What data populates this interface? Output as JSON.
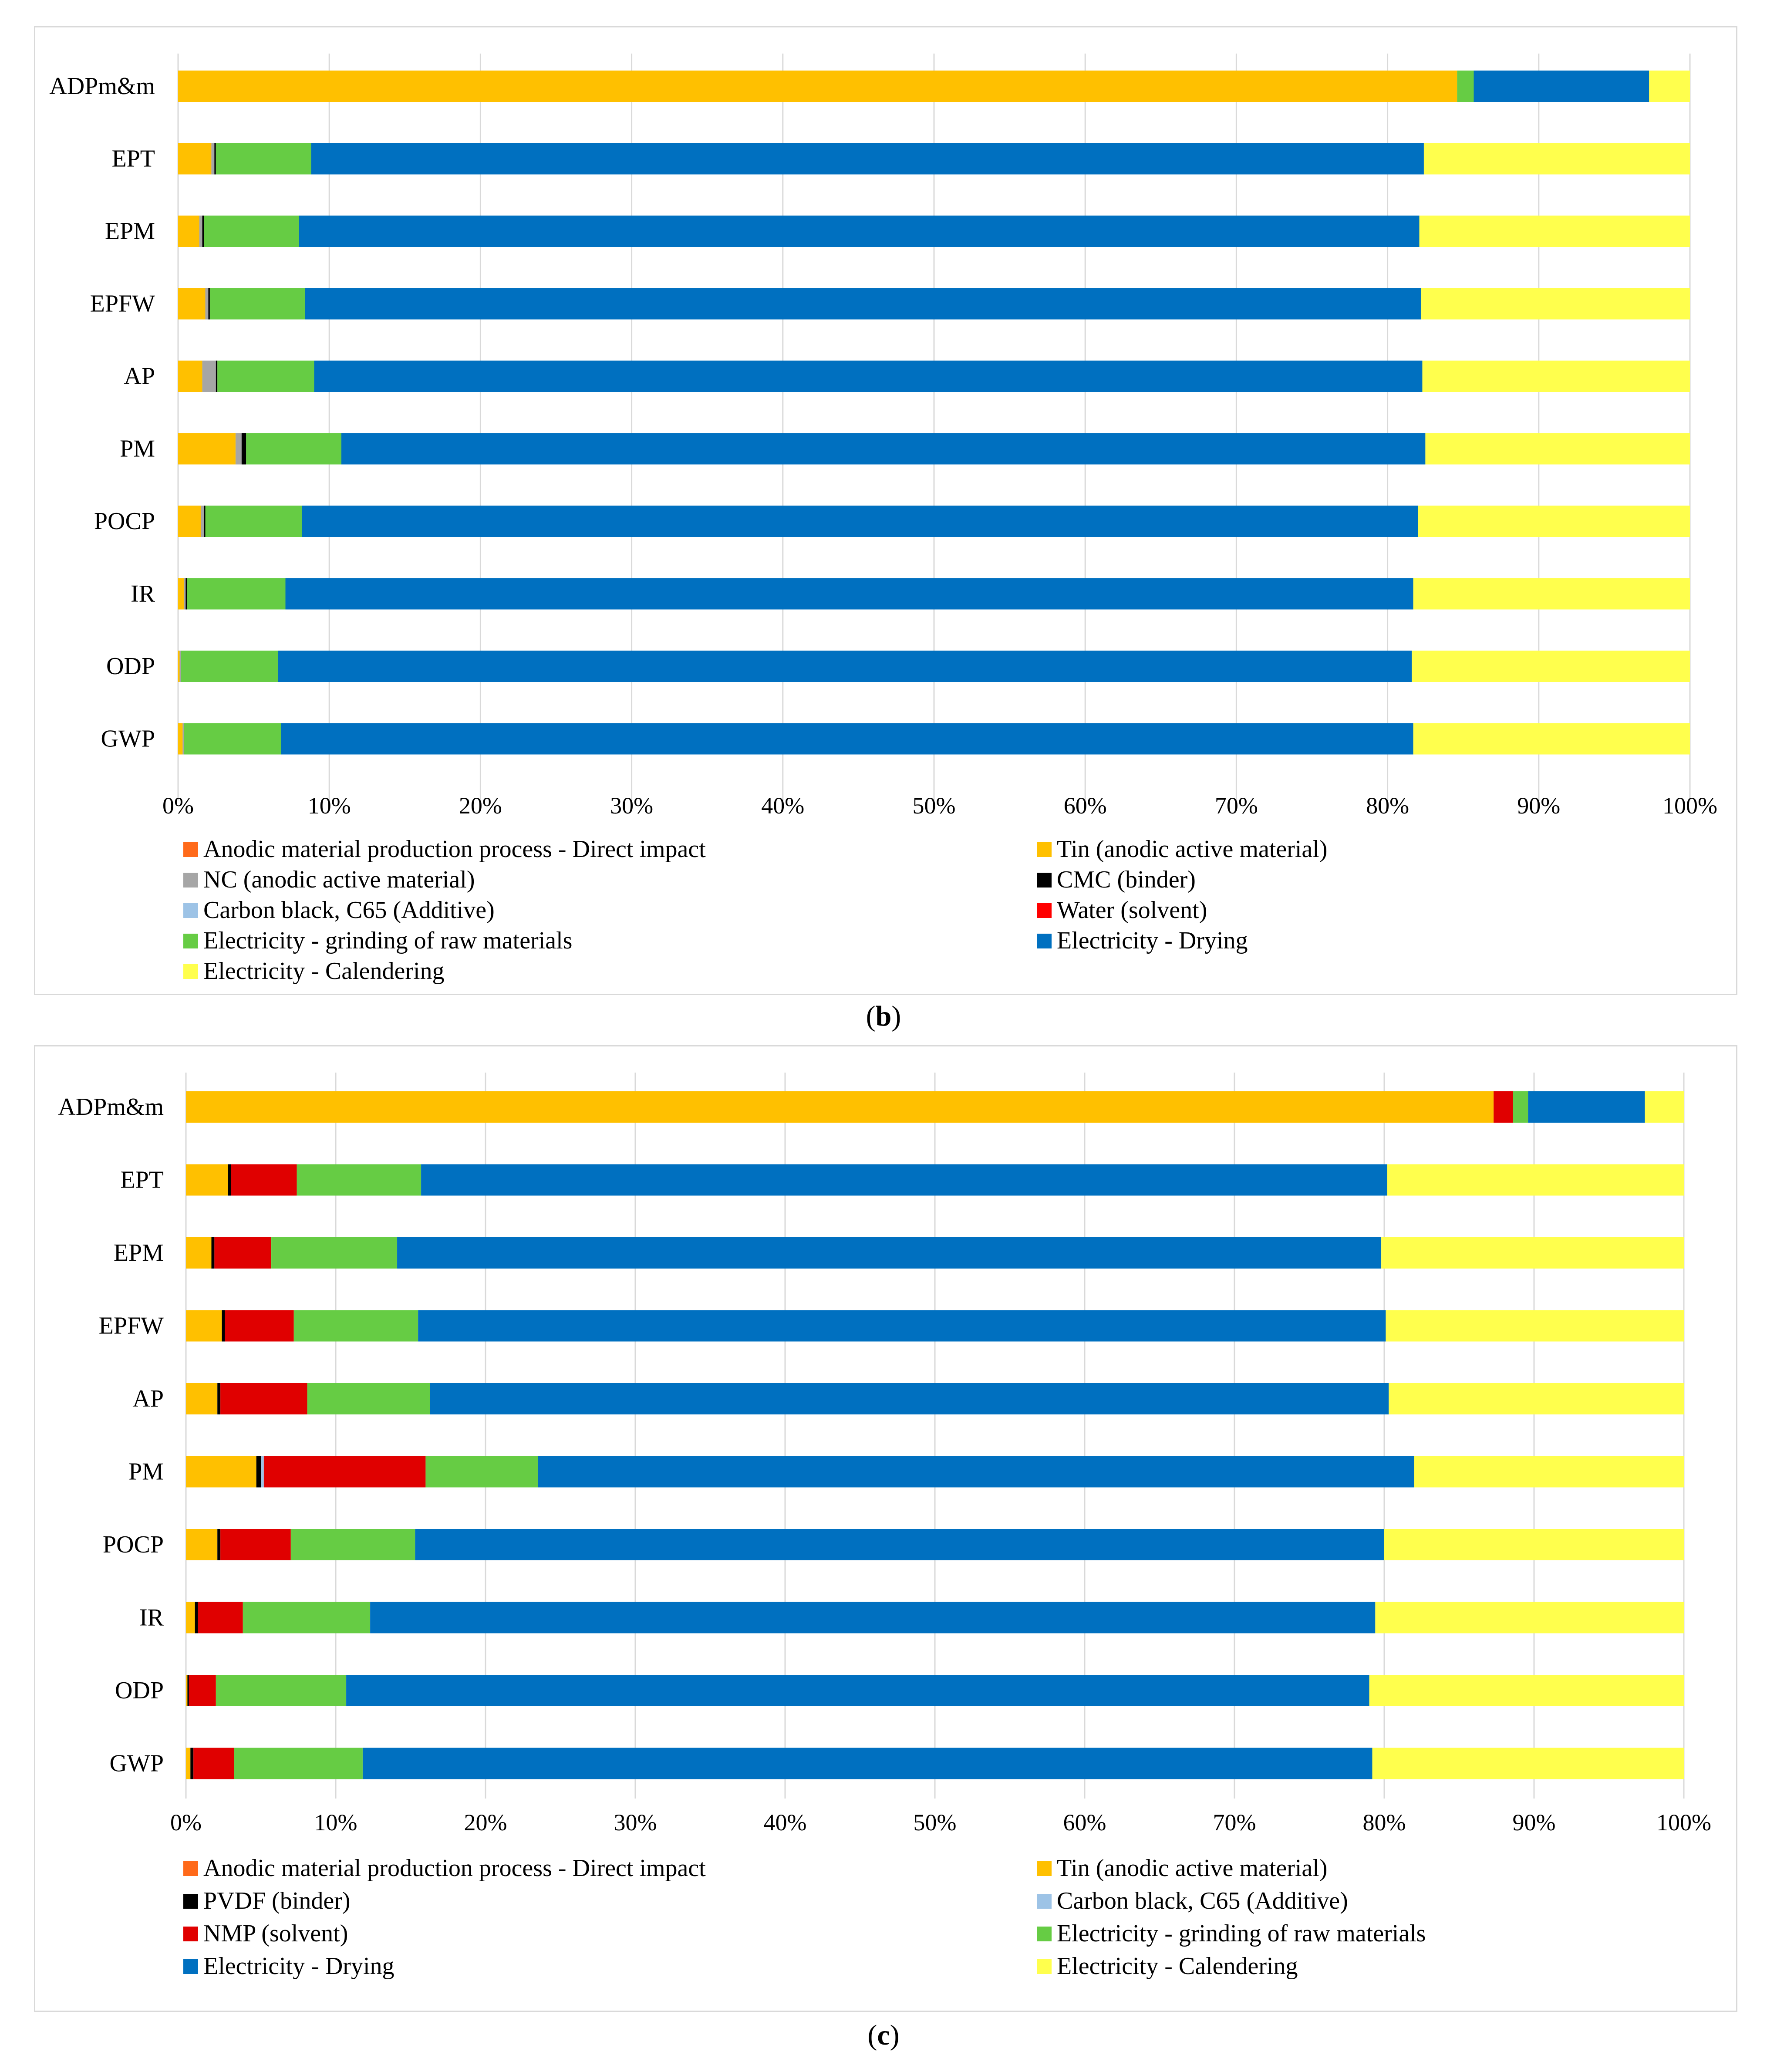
{
  "chart_data": [
    {
      "type": "bar",
      "orientation": "horizontal",
      "stacked": "percent",
      "panel_label": "b",
      "categories": [
        "ADPm&m",
        "EPT",
        "EPM",
        "EPFW",
        "AP",
        "PM",
        "POCP",
        "IR",
        "ODP",
        "GWP"
      ],
      "xlim": [
        0,
        100
      ],
      "xticks": [
        "0%",
        "10%",
        "20%",
        "30%",
        "40%",
        "50%",
        "60%",
        "70%",
        "80%",
        "90%",
        "100%"
      ],
      "grid": "vertical",
      "legend_position": "bottom",
      "series": [
        {
          "name": "Anodic material production process - Direct impact",
          "color": "#ff6a1a",
          "values": [
            0,
            0,
            0,
            0,
            0,
            0,
            0,
            0,
            0,
            0
          ]
        },
        {
          "name": "Tin (anodic active material)",
          "color": "#ffc000",
          "values": [
            84.6,
            2.2,
            1.4,
            1.8,
            1.6,
            3.8,
            1.5,
            0.4,
            0.1,
            0.3
          ]
        },
        {
          "name": "NC (anodic active material)",
          "color": "#a6a6a6",
          "values": [
            0,
            0.2,
            0.2,
            0.2,
            0.9,
            0.4,
            0.2,
            0.1,
            0.1,
            0.1
          ]
        },
        {
          "name": "CMC  (binder)",
          "color": "#000000",
          "values": [
            0,
            0.1,
            0.1,
            0.1,
            0.1,
            0.3,
            0.1,
            0.1,
            0,
            0
          ]
        },
        {
          "name": "Carbon black, C65 (Additive)",
          "color": "#9dc3e6",
          "values": [
            0,
            0,
            0,
            0,
            0,
            0,
            0,
            0,
            0,
            0
          ]
        },
        {
          "name": "Water (solvent)",
          "color": "#ff0000",
          "values": [
            0,
            0,
            0,
            0,
            0,
            0,
            0,
            0,
            0,
            0
          ]
        },
        {
          "name": "Electricity - grinding of raw materials",
          "color": "#66cc44",
          "values": [
            1.1,
            6.3,
            6.3,
            6.3,
            6.4,
            6.3,
            6.4,
            6.5,
            6.4,
            6.4
          ]
        },
        {
          "name": "Electricity - Drying",
          "color": "#0070c0",
          "values": [
            11.6,
            73.6,
            74.1,
            73.8,
            73.3,
            71.7,
            73.8,
            74.6,
            75.0,
            74.9
          ]
        },
        {
          "name": "Electricity - Calendering",
          "color": "#ffff4d",
          "values": [
            2.7,
            17.6,
            17.9,
            17.8,
            17.7,
            17.5,
            18.0,
            18.3,
            18.4,
            18.3
          ]
        }
      ]
    },
    {
      "type": "bar",
      "orientation": "horizontal",
      "stacked": "percent",
      "panel_label": "c",
      "categories": [
        "ADPm&m",
        "EPT",
        "EPM",
        "EPFW",
        "AP",
        "PM",
        "POCP",
        "IR",
        "ODP",
        "GWP"
      ],
      "xlim": [
        0,
        100
      ],
      "xticks": [
        "0%",
        "10%",
        "20%",
        "30%",
        "40%",
        "50%",
        "60%",
        "70%",
        "80%",
        "90%",
        "100%"
      ],
      "grid": "vertical",
      "legend_position": "bottom",
      "series": [
        {
          "name": "Anodic material production process - Direct impact",
          "color": "#ff6a1a",
          "values": [
            0,
            0,
            0,
            0,
            0,
            0,
            0,
            0,
            0,
            0
          ]
        },
        {
          "name": "Tin (anodic active material)",
          "color": "#ffc000",
          "values": [
            87.3,
            2.8,
            1.7,
            2.4,
            2.1,
            4.7,
            2.1,
            0.6,
            0.1,
            0.3
          ]
        },
        {
          "name": "PVDF  (binder)",
          "color": "#000000",
          "values": [
            0,
            0.2,
            0.2,
            0.2,
            0.2,
            0.3,
            0.2,
            0.2,
            0.1,
            0.2
          ]
        },
        {
          "name": "Carbon black, C65 (Additive)",
          "color": "#9dc3e6",
          "values": [
            0,
            0,
            0,
            0,
            0,
            0.2,
            0,
            0,
            0,
            0
          ]
        },
        {
          "name": "NMP (solvent)",
          "color": "#e00000",
          "values": [
            1.3,
            4.4,
            3.8,
            4.6,
            5.8,
            10.8,
            4.7,
            3.0,
            1.8,
            2.7
          ]
        },
        {
          "name": "Electricity - grinding of raw materials",
          "color": "#66cc44",
          "values": [
            1.0,
            8.3,
            8.4,
            8.3,
            8.2,
            7.5,
            8.3,
            8.5,
            8.7,
            8.6
          ]
        },
        {
          "name": "Electricity - Drying",
          "color": "#0070c0",
          "values": [
            7.8,
            64.5,
            65.7,
            64.6,
            64.0,
            58.5,
            64.7,
            67.1,
            68.3,
            67.4
          ]
        },
        {
          "name": "Electricity - Calendering",
          "color": "#ffff4d",
          "values": [
            2.6,
            19.8,
            20.2,
            19.9,
            19.7,
            18.0,
            20.0,
            20.6,
            21.0,
            20.8
          ]
        }
      ]
    }
  ],
  "captions": {
    "b_open": "(",
    "b_label": "b",
    "b_close": ")",
    "c_open": "(",
    "c_label": "c",
    "c_close": ")"
  }
}
